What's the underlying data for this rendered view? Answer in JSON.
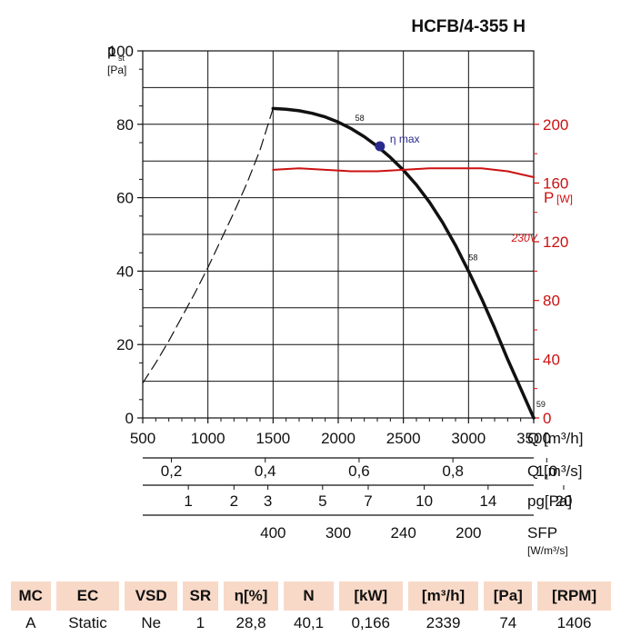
{
  "title": "HCFB/4-355 H",
  "chart_data": {
    "type": "line",
    "x_label": "Q",
    "x_unit": "[m³/h]",
    "xlim": [
      500,
      3500
    ],
    "x_ticks": [
      500,
      1000,
      1500,
      2000,
      2500,
      3000,
      3500
    ],
    "y_label": "p",
    "y_label_sub": "st",
    "y_unit": "[Pa]",
    "ylim": [
      0,
      100
    ],
    "y_ticks": [
      0,
      20,
      40,
      60,
      80,
      100
    ],
    "y2_label": "P",
    "y2_unit": "[W]",
    "y2lim": [
      0,
      250
    ],
    "y2_ticks": [
      0,
      40,
      80,
      120,
      160,
      200
    ],
    "series": [
      {
        "name": "static pressure",
        "axis": "left",
        "style": "solid",
        "x": [
          1500,
          1600,
          1700,
          1800,
          1900,
          2000,
          2100,
          2200,
          2300,
          2400,
          2500,
          2600,
          2700,
          2800,
          2900,
          3000,
          3100,
          3200,
          3300,
          3400,
          3500
        ],
        "y": [
          84.3,
          84.1,
          83.7,
          83.0,
          82.0,
          80.6,
          78.8,
          76.6,
          74.0,
          71.0,
          67.5,
          63.5,
          58.8,
          53.3,
          47.0,
          40.0,
          32.5,
          24.5,
          16.0,
          8.0,
          0
        ]
      },
      {
        "name": "unstable region",
        "axis": "left",
        "style": "dashed",
        "x": [
          500,
          600,
          700,
          800,
          900,
          1000,
          1100,
          1200,
          1300,
          1400,
          1500
        ],
        "y": [
          9.5,
          15,
          21,
          27.5,
          34,
          41,
          48.5,
          56,
          64,
          73,
          84.3
        ]
      },
      {
        "name": "230V",
        "axis": "right",
        "style": "solid",
        "color": "#cc1111",
        "x": [
          1500,
          1700,
          1900,
          2100,
          2300,
          2500,
          2700,
          2900,
          3100,
          3300,
          3500
        ],
        "y": [
          169,
          170,
          169,
          168,
          168,
          169,
          170,
          170,
          170,
          168,
          164
        ]
      }
    ],
    "annotations": [
      {
        "text": "58",
        "x": 2130,
        "y": 81
      },
      {
        "text": "58",
        "x": 3000,
        "y": 43
      },
      {
        "text": "59",
        "x": 3520,
        "y": 3
      },
      {
        "text": "230V",
        "x": 3330,
        "y": 48
      }
    ],
    "eta_max": {
      "label": "η max",
      "x": 2320,
      "y": 74
    },
    "secondary_scales": [
      {
        "unit": "Q [m³/s]",
        "labels": [
          "0,2",
          "0,4",
          "0,6",
          "0,8",
          "1,0"
        ],
        "values_m3h": [
          720,
          1440,
          2160,
          2880,
          3600
        ]
      },
      {
        "unit": "pg[Pa]",
        "labels": [
          "1",
          "2",
          "3",
          "5",
          "7",
          "10",
          "14",
          "20"
        ],
        "values_m3h": [
          850,
          1200,
          1460,
          1880,
          2230,
          2660,
          3150,
          3730
        ]
      },
      {
        "unit": "SFP",
        "unit2": "[W/m³/s]",
        "labels": [
          "400",
          "300",
          "240",
          "200"
        ],
        "values_m3h": [
          1500,
          2000,
          2500,
          3000
        ]
      }
    ]
  },
  "table": {
    "headers": [
      "MC",
      "EC",
      "VSD",
      "SR",
      "η[%]",
      "N",
      "[kW]",
      "[m³/h]",
      "[Pa]",
      "[RPM]"
    ],
    "row": [
      "A",
      "Static",
      "Ne",
      "1",
      "28,8",
      "40,1",
      "0,166",
      "2339",
      "74",
      "1406"
    ]
  },
  "colors": {
    "curve": "#111111",
    "power": "#cc1111",
    "eta_marker": "#2a2a8c",
    "table_header_bg": "#f8d9c8"
  }
}
